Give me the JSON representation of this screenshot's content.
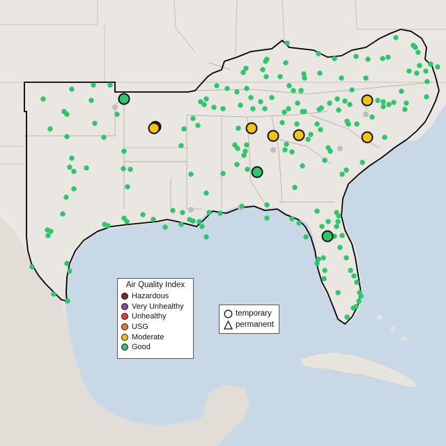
{
  "legend": {
    "title": "Air Quality Index",
    "categories": [
      {
        "label": "Hazardous",
        "color": "#7e2a23"
      },
      {
        "label": "Very Unhealthy",
        "color": "#8f44a8"
      },
      {
        "label": "Unhealthy",
        "color": "#e0412b"
      },
      {
        "label": "USG",
        "color": "#ea7c1e"
      },
      {
        "label": "Moderate",
        "color": "#f2c218"
      },
      {
        "label": "Good",
        "color": "#2ec66a"
      }
    ]
  },
  "monitor_types": {
    "temporary": "temporary",
    "permanent": "permanent"
  },
  "colors": {
    "ocean": "#c9d8e6",
    "land": "#eae6e1",
    "mexico": "#e2ddd6",
    "border": "#000000",
    "state_lines": "#bdb7b0",
    "no_data": "#bdbdbd"
  }
}
